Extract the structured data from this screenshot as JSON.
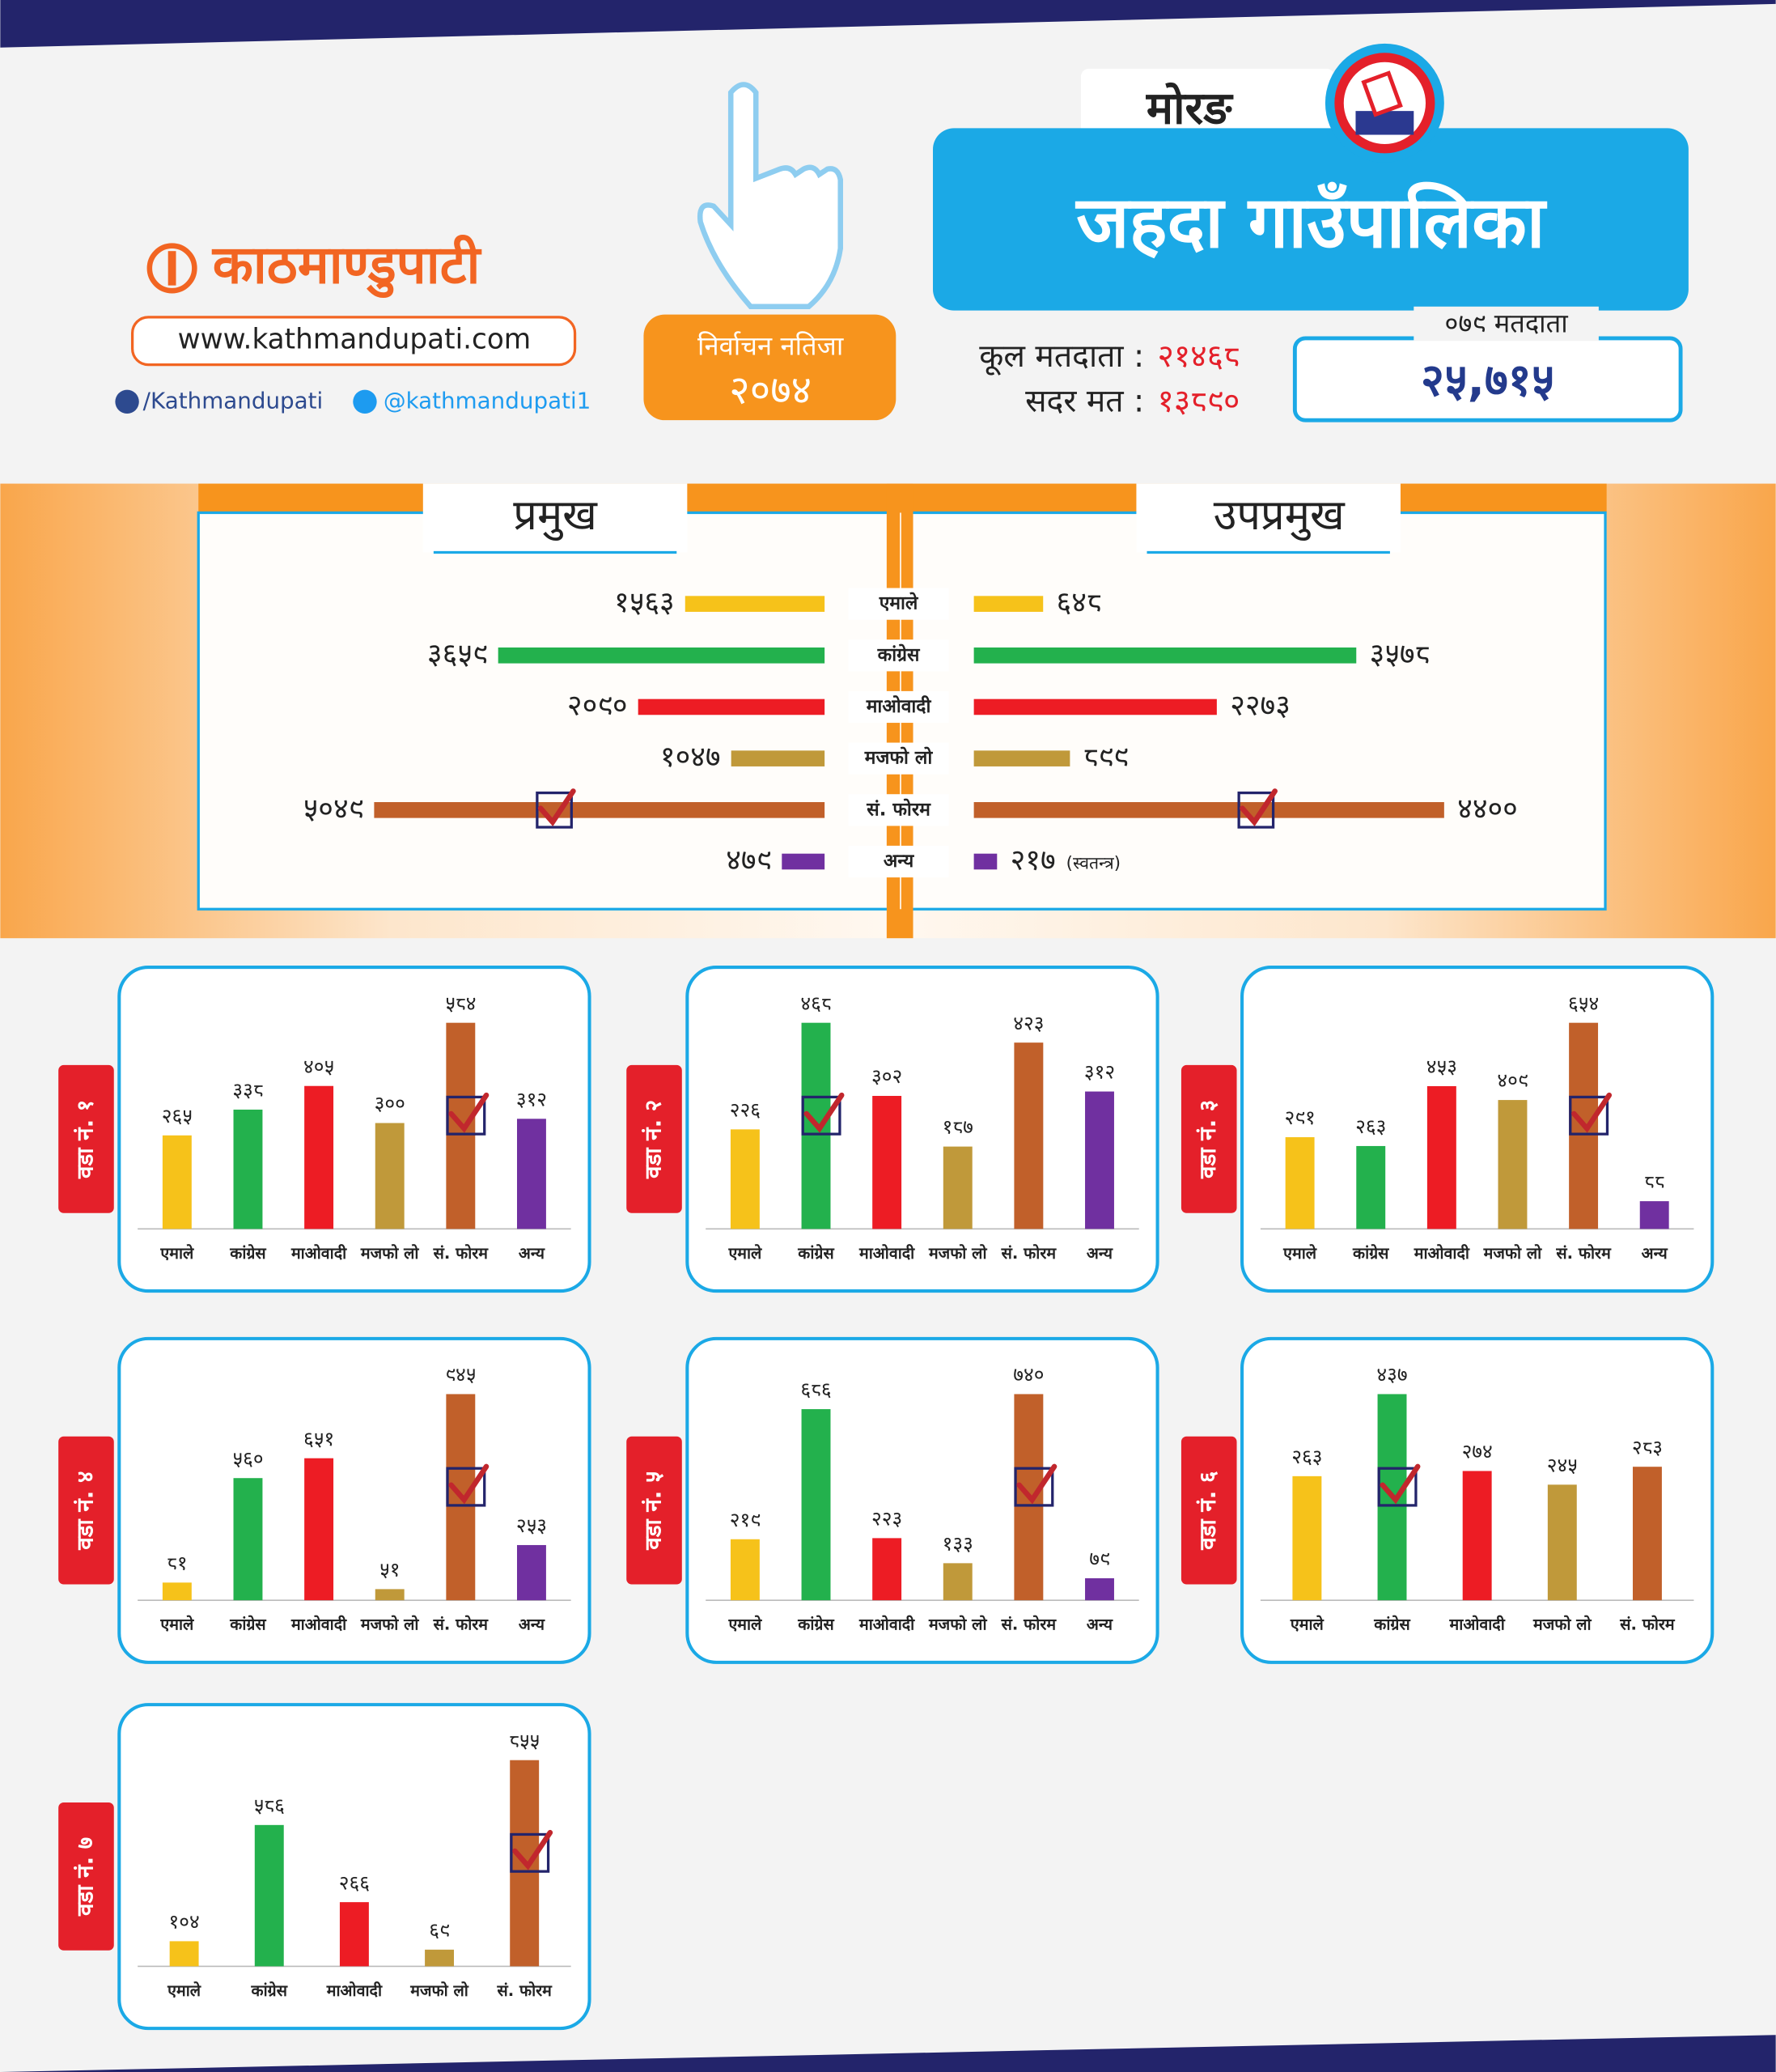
{
  "header": {
    "logo": "काठमाण्डुपाटी",
    "website": "www.kathmandupati.com",
    "facebook": "/Kathmandupati",
    "twitter": "@kathmandupati1",
    "badge_title": "निर्वाचन नतिजा",
    "badge_year": "२०७४",
    "district": "मोरङ",
    "municipality": "जहदा गाउँपालिका",
    "total_voters_label": "कूल मतदाता :",
    "total_voters": "२१४६८",
    "valid_votes_label": "सदर मत :",
    "valid_votes": "१३८९०",
    "voters_079_label": "०७९ मतदाता",
    "voters_079": "२५,७१५"
  },
  "chart_data": [
    {
      "type": "butterfly",
      "categories": [
        "एमाले",
        "कांग्रेस",
        "माओवादी",
        "मजफो लो",
        "सं. फोरम",
        "अन्य"
      ],
      "colors": [
        "#f6c21a",
        "#23b14d",
        "#ed1c24",
        "#c0993a",
        "#c1602a",
        "#7030a0"
      ],
      "series": [
        {
          "name": "प्रमुख",
          "values": [
            1563,
            3659,
            2090,
            1047,
            5049,
            479
          ],
          "value_labels": [
            "१५६३",
            "३६५९",
            "२०९०",
            "१०४७",
            "५०४९",
            "४७९"
          ],
          "checked": 4
        },
        {
          "name": "उपप्रमुख",
          "values": [
            648,
            3578,
            2273,
            899,
            4400,
            217
          ],
          "value_labels": [
            "६४८",
            "३५७८",
            "२२७३",
            "८९९",
            "४४००",
            "२१७"
          ],
          "value_notes": [
            null,
            null,
            null,
            null,
            null,
            "(स्वतन्त्र)"
          ],
          "checked": 4
        }
      ]
    },
    {
      "type": "bar",
      "title": "वडा नं. १",
      "categories": [
        "एमाले",
        "कांग्रेस",
        "माओवादी",
        "मजफो लो",
        "सं. फोरम",
        "अन्य"
      ],
      "colors": [
        "#f6c21a",
        "#23b14d",
        "#ed1c24",
        "#c0993a",
        "#c1602a",
        "#7030a0"
      ],
      "values": [
        265,
        338,
        405,
        300,
        584,
        312
      ],
      "value_labels": [
        "२६५",
        "३३८",
        "४०५",
        "३००",
        "५८४",
        "३१२"
      ],
      "checked": 4
    },
    {
      "type": "bar",
      "title": "वडा नं. २",
      "categories": [
        "एमाले",
        "कांग्रेस",
        "माओवादी",
        "मजफो लो",
        "सं. फोरम",
        "अन्य"
      ],
      "colors": [
        "#f6c21a",
        "#23b14d",
        "#ed1c24",
        "#c0993a",
        "#c1602a",
        "#7030a0"
      ],
      "values": [
        226,
        468,
        302,
        187,
        423,
        312
      ],
      "value_labels": [
        "२२६",
        "४६८",
        "३०२",
        "१८७",
        "४२३",
        "३१२"
      ],
      "checked": 1
    },
    {
      "type": "bar",
      "title": "वडा नं. ३",
      "categories": [
        "एमाले",
        "कांग्रेस",
        "माओवादी",
        "मजफो लो",
        "सं. फोरम",
        "अन्य"
      ],
      "colors": [
        "#f6c21a",
        "#23b14d",
        "#ed1c24",
        "#c0993a",
        "#c1602a",
        "#7030a0"
      ],
      "values": [
        291,
        263,
        453,
        409,
        654,
        88
      ],
      "value_labels": [
        "२९१",
        "२६३",
        "४५३",
        "४०९",
        "६५४",
        "८८"
      ],
      "checked": 4
    },
    {
      "type": "bar",
      "title": "वडा नं. ४",
      "categories": [
        "एमाले",
        "कांग्रेस",
        "माओवादी",
        "मजफो लो",
        "सं. फोरम",
        "अन्य"
      ],
      "colors": [
        "#f6c21a",
        "#23b14d",
        "#ed1c24",
        "#c0993a",
        "#c1602a",
        "#7030a0"
      ],
      "values": [
        81,
        560,
        651,
        51,
        945,
        253
      ],
      "value_labels": [
        "८१",
        "५६०",
        "६५१",
        "५१",
        "९४५",
        "२५३"
      ],
      "checked": 4
    },
    {
      "type": "bar",
      "title": "वडा नं. ५",
      "categories": [
        "एमाले",
        "कांग्रेस",
        "माओवादी",
        "मजफो लो",
        "सं. फोरम",
        "अन्य"
      ],
      "colors": [
        "#f6c21a",
        "#23b14d",
        "#ed1c24",
        "#c0993a",
        "#c1602a",
        "#7030a0"
      ],
      "values": [
        219,
        686,
        223,
        133,
        740,
        79
      ],
      "value_labels": [
        "२१९",
        "६८६",
        "२२३",
        "१३३",
        "७४०",
        "७९"
      ],
      "checked": 4
    },
    {
      "type": "bar",
      "title": "वडा नं. ६",
      "categories": [
        "एमाले",
        "कांग्रेस",
        "माओवादी",
        "मजफो लो",
        "सं. फोरम"
      ],
      "colors": [
        "#f6c21a",
        "#23b14d",
        "#ed1c24",
        "#c0993a",
        "#c1602a"
      ],
      "values": [
        263,
        437,
        274,
        245,
        283
      ],
      "value_labels": [
        "२६३",
        "४३७",
        "२७४",
        "२४५",
        "२८३"
      ],
      "checked": 1
    },
    {
      "type": "bar",
      "title": "वडा नं. ७",
      "categories": [
        "एमाले",
        "कांग्रेस",
        "माओवादी",
        "मजफो लो",
        "सं. फोरम"
      ],
      "colors": [
        "#f6c21a",
        "#23b14d",
        "#ed1c24",
        "#c0993a",
        "#c1602a"
      ],
      "values": [
        104,
        586,
        266,
        69,
        855
      ],
      "value_labels": [
        "१०४",
        "५८६",
        "२६६",
        "६९",
        "८५५"
      ],
      "checked": 4
    }
  ]
}
